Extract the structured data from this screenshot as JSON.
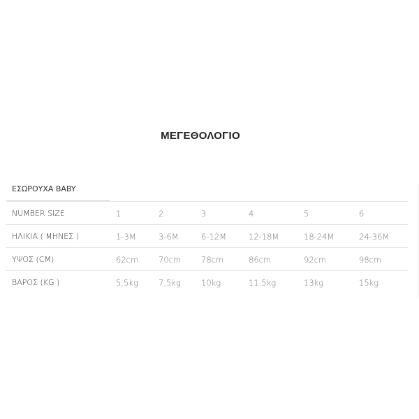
{
  "title": "ΜΕΓΕΘΟΛΟΓΙΟ",
  "tab": "ΕΣΩΡΟΥΧΑ BABY",
  "rows": [
    {
      "header": "NUMBER SIZE",
      "values": [
        "1",
        "2",
        "3",
        "4",
        "5",
        "6"
      ]
    },
    {
      "header": "ΗΛΙΚΙΑ ( ΜΗΝΕΣ )",
      "values": [
        "1-3M",
        "3-6M",
        "6-12M",
        "12-18M",
        "18-24M",
        "24-36M"
      ]
    },
    {
      "header": "ΥΨΟΣ (CM)",
      "values": [
        "62cm",
        "70cm",
        "78cm",
        "86cm",
        "92cm",
        "98cm"
      ]
    },
    {
      "header": "ΒΑΡΟΣ (KG )",
      "values": [
        "5,5kg",
        "7,5kg",
        "10kg",
        "11,5kg",
        "13kg",
        "15kg"
      ]
    }
  ]
}
